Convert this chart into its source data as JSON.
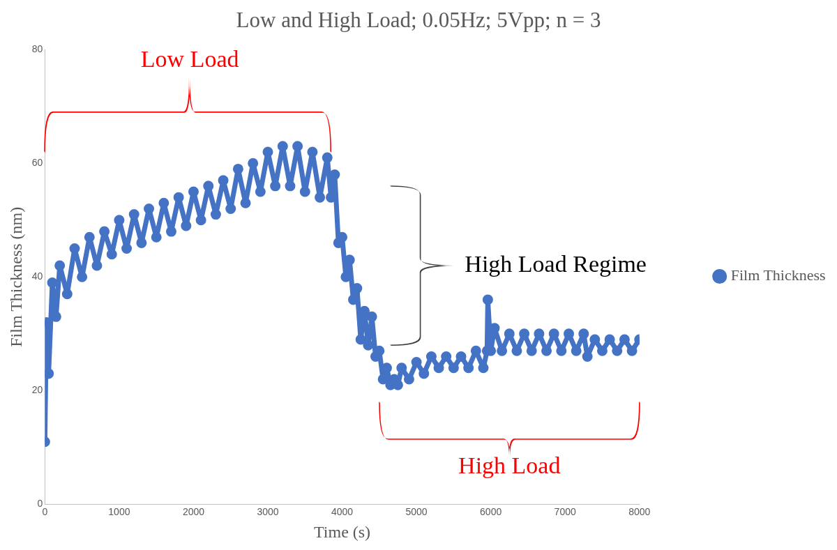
{
  "chart_data": {
    "type": "line",
    "title": "Low and High Load; 0.05Hz; 5Vpp; n = 3",
    "xlabel": "Time (s)",
    "ylabel": "Film Thickness (nm)",
    "x": [
      0,
      20,
      50,
      100,
      150,
      200,
      300,
      400,
      500,
      600,
      700,
      800,
      900,
      1000,
      1100,
      1200,
      1300,
      1400,
      1500,
      1600,
      1700,
      1800,
      1900,
      2000,
      2100,
      2200,
      2300,
      2400,
      2500,
      2600,
      2700,
      2800,
      2900,
      3000,
      3100,
      3200,
      3300,
      3400,
      3500,
      3600,
      3700,
      3800,
      3850,
      3900,
      3950,
      4000,
      4050,
      4100,
      4150,
      4200,
      4250,
      4300,
      4350,
      4400,
      4450,
      4500,
      4550,
      4600,
      4650,
      4700,
      4750,
      4800,
      4900,
      5000,
      5100,
      5200,
      5300,
      5400,
      5500,
      5600,
      5700,
      5800,
      5900,
      5950,
      5960,
      6000,
      6050,
      6150,
      6250,
      6350,
      6450,
      6550,
      6650,
      6750,
      6850,
      6950,
      7050,
      7150,
      7250,
      7300,
      7400,
      7500,
      7600,
      7700,
      7800,
      7900,
      8000
    ],
    "series": [
      {
        "name": "Film Thickness",
        "color": "#4472c4",
        "values": [
          11,
          32,
          23,
          39,
          33,
          42,
          37,
          45,
          40,
          47,
          42,
          48,
          44,
          50,
          45,
          51,
          46,
          52,
          47,
          53,
          48,
          54,
          49,
          55,
          50,
          56,
          51,
          57,
          52,
          59,
          53,
          60,
          55,
          62,
          56,
          63,
          56,
          63,
          55,
          62,
          54,
          61,
          54,
          58,
          46,
          47,
          40,
          43,
          36,
          38,
          29,
          34,
          28,
          33,
          26,
          27,
          22,
          24,
          21,
          22,
          21,
          24,
          22,
          25,
          23,
          26,
          24,
          26,
          24,
          26,
          24,
          27,
          24,
          27,
          36,
          27,
          31,
          27,
          30,
          27,
          30,
          27,
          30,
          27,
          30,
          27,
          30,
          27,
          30,
          26,
          29,
          27,
          29,
          27,
          29,
          27,
          29
        ]
      }
    ],
    "xlim": [
      0,
      8000
    ],
    "xticks": [
      0,
      1000,
      2000,
      3000,
      4000,
      5000,
      6000,
      7000,
      8000
    ],
    "ylim": [
      0,
      80
    ],
    "yticks": [
      0,
      20,
      40,
      60,
      80
    ],
    "grid": false,
    "legend": "right",
    "marker": "circle",
    "line_style": "solid",
    "annotations": [
      "Low Load",
      "High Load Regime",
      "High Load"
    ]
  }
}
